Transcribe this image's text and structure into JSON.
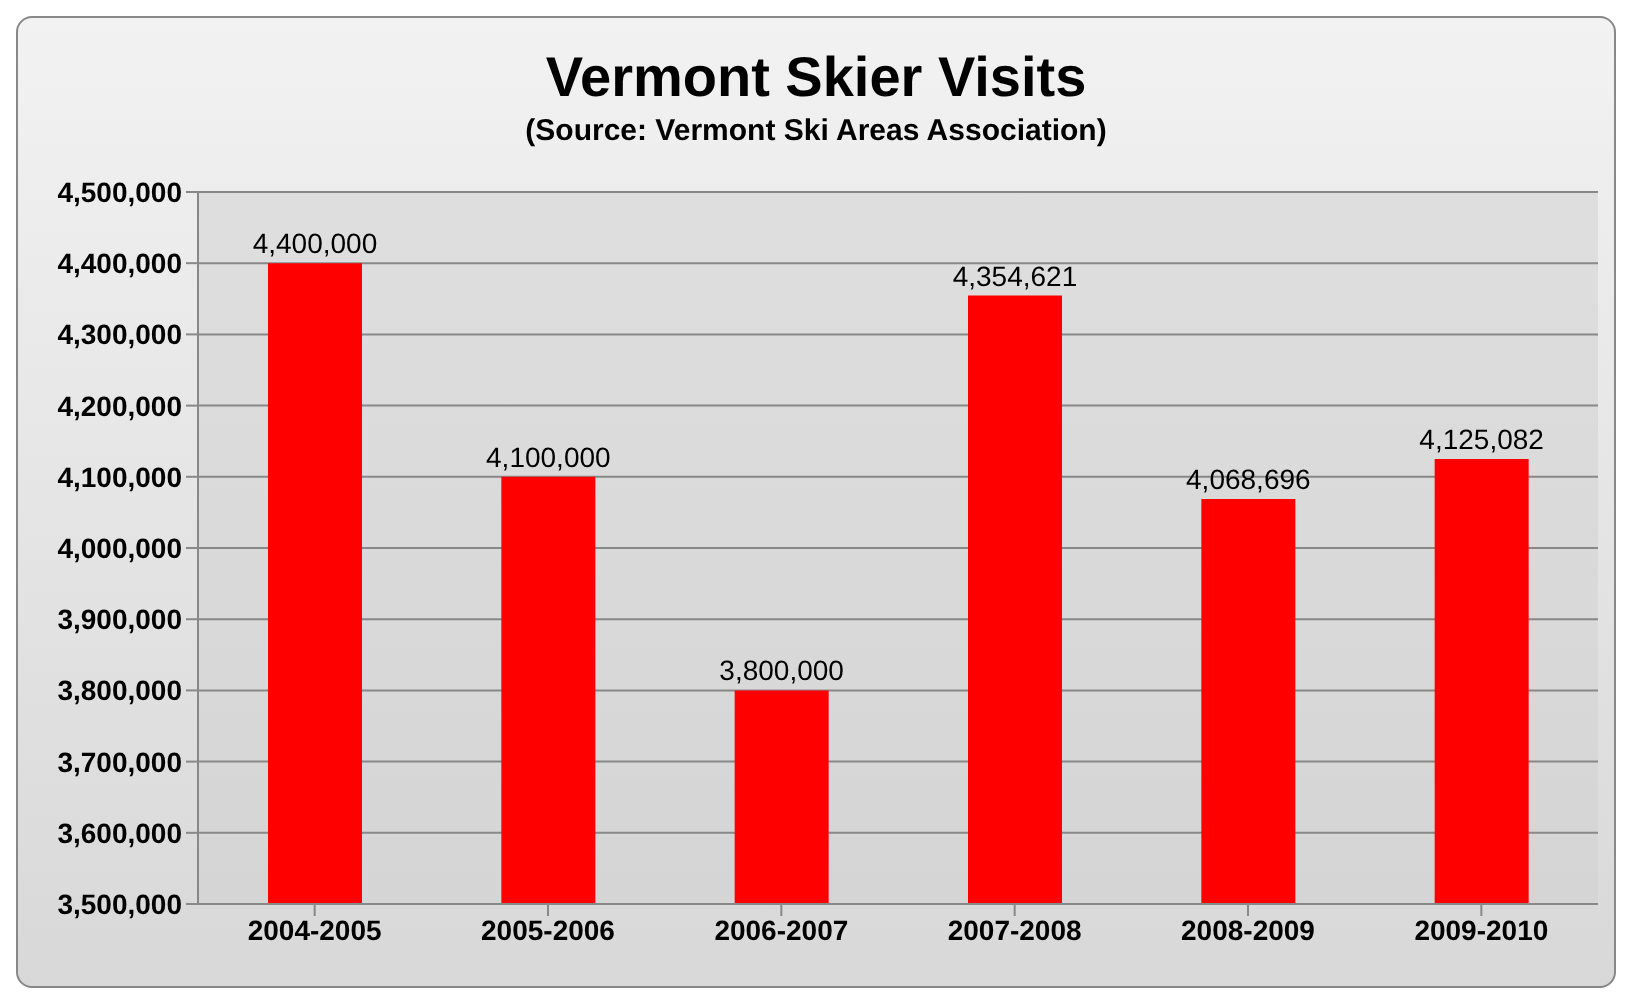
{
  "chart_data": {
    "type": "bar",
    "title": "Vermont Skier Visits",
    "annotations": [
      "(Source: Vermont Ski Areas Association)"
    ],
    "categories": [
      "2004-2005",
      "2005-2006",
      "2006-2007",
      "2007-2008",
      "2008-2009",
      "2009-2010"
    ],
    "values": [
      4400000,
      4100000,
      3800000,
      4354621,
      4068696,
      4125082
    ],
    "color": "#ff0000",
    "ylim": [
      3500000,
      4500000
    ],
    "value_labels": [
      "4,400,000",
      "4,100,000",
      "3,800,000",
      "4,354,621",
      "4,068,696",
      "4,125,082"
    ],
    "yticks": [
      {
        "value": 3500000,
        "label": "3,500,000"
      },
      {
        "value": 3600000,
        "label": "3,600,000"
      },
      {
        "value": 3700000,
        "label": "3,700,000"
      },
      {
        "value": 3800000,
        "label": "3,800,000"
      },
      {
        "value": 3900000,
        "label": "3,900,000"
      },
      {
        "value": 4000000,
        "label": "4,000,000"
      },
      {
        "value": 4100000,
        "label": "4,100,000"
      },
      {
        "value": 4200000,
        "label": "4,200,000"
      },
      {
        "value": 4300000,
        "label": "4,300,000"
      },
      {
        "value": 4400000,
        "label": "4,400,000"
      },
      {
        "value": 4500000,
        "label": "4,500,000"
      }
    ],
    "grid": "y",
    "legend": false
  }
}
